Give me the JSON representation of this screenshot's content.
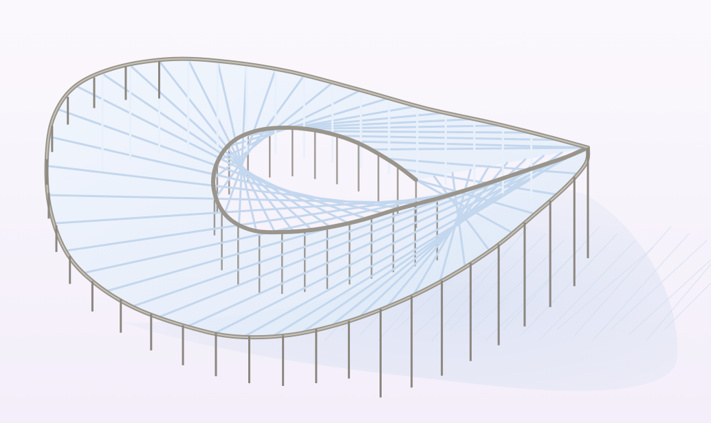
{
  "scene": {
    "subject": "mobius-canopy-structure",
    "colors": {
      "background_top": "#fbf8fd",
      "background_bottom": "#f3eef9",
      "shadow": "#c9d9ef",
      "shadow_lines": "#d3dff0",
      "membrane": "#e2eefb",
      "ribs": "#c3d7ee",
      "rib_highlight": "#e8f1fb",
      "ring_beam": "#9a958c",
      "ring_highlight": "#c7c2b8",
      "columns": "#8c877f"
    }
  }
}
